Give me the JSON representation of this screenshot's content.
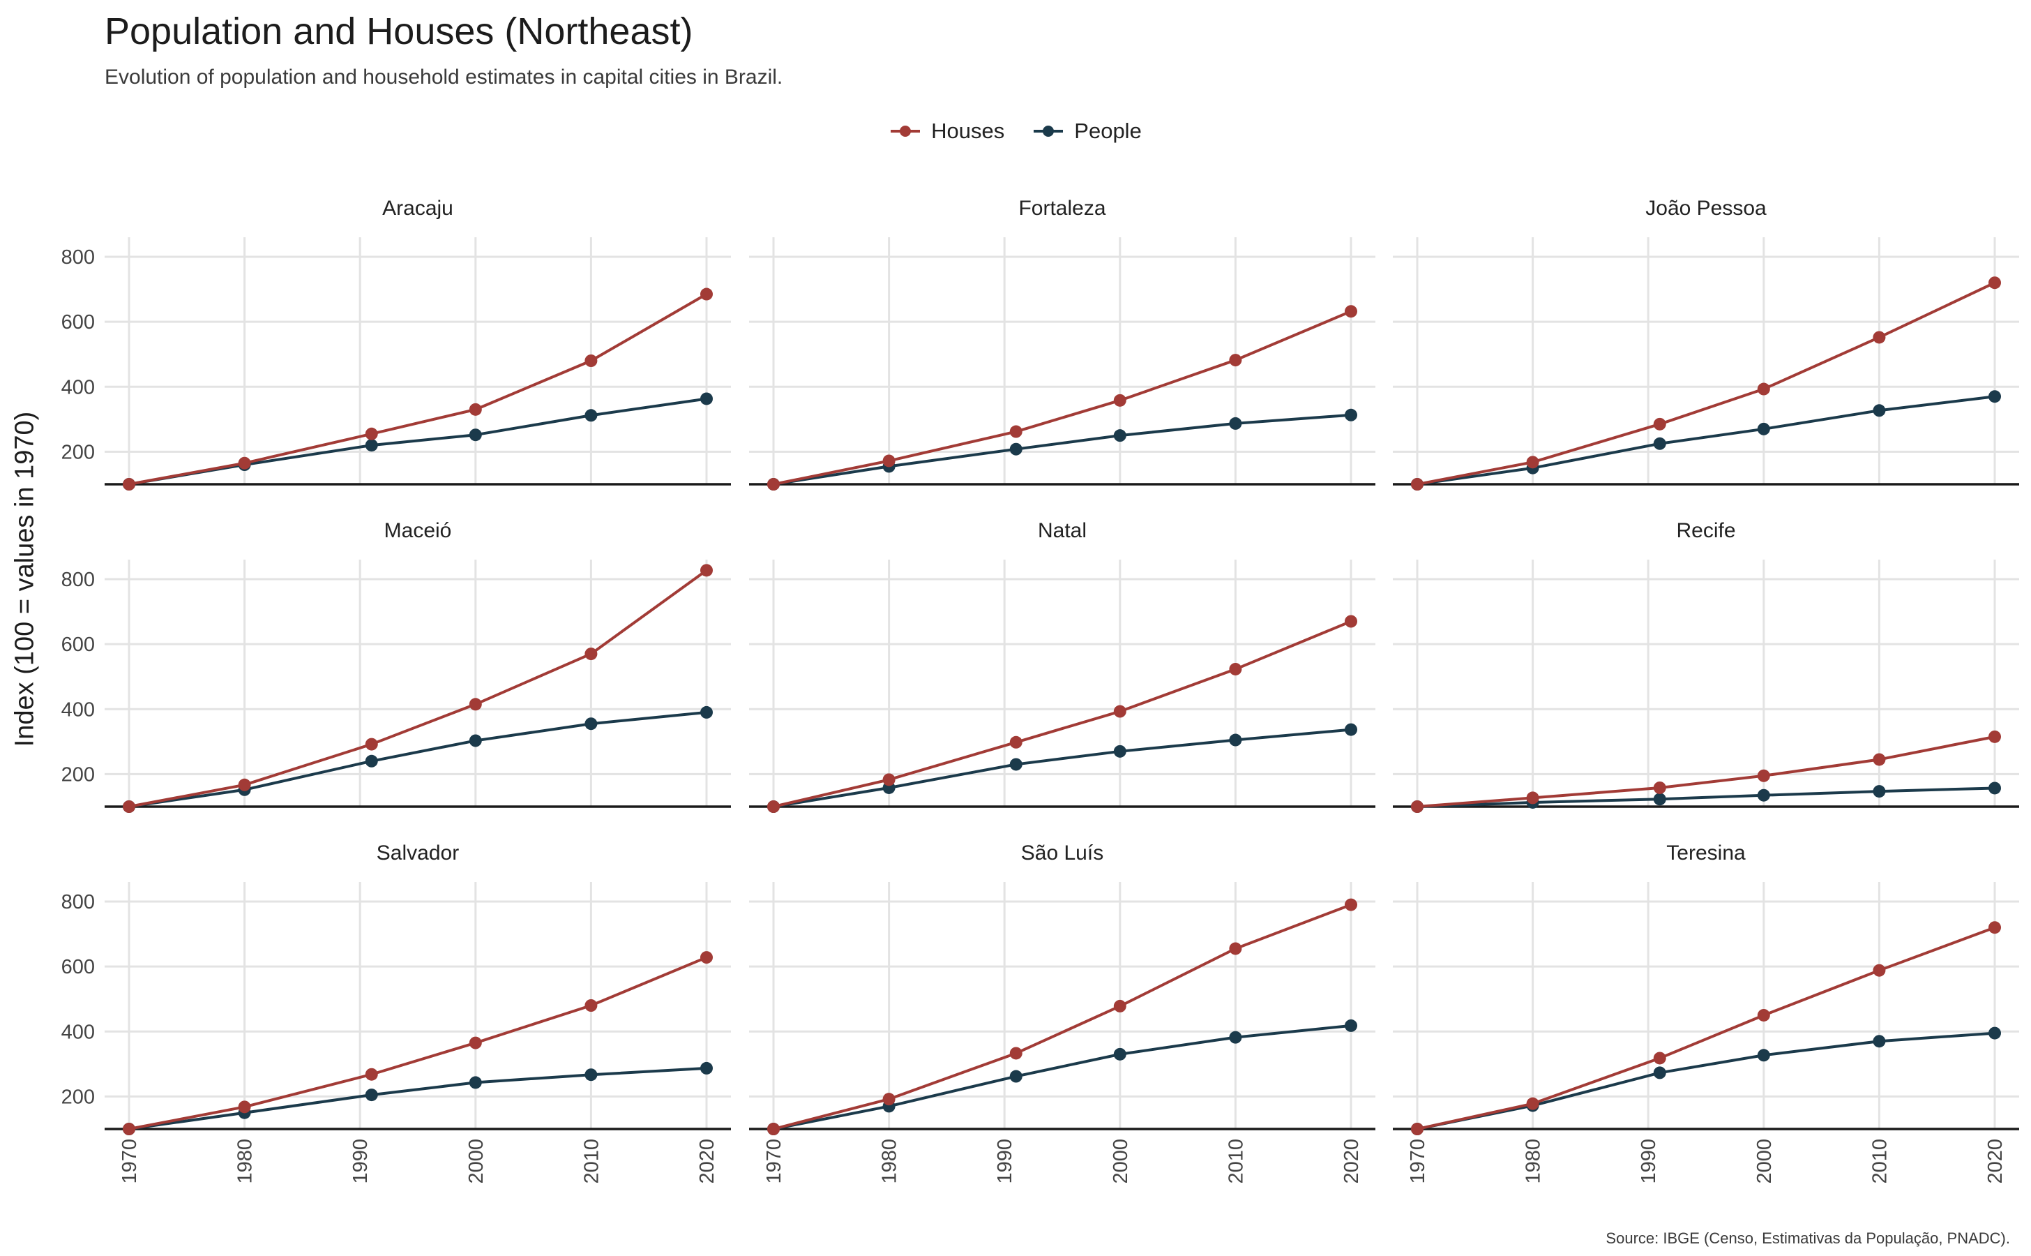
{
  "title": "Population and Houses (Northeast)",
  "subtitle": "Evolution of population and household estimates in capital cities in Brazil.",
  "caption": "Source: IBGE (Censo, Estimativas da População, PNADC).",
  "y_axis_label": "Index (100 = values in 1970)",
  "colors": {
    "houses": "#A23B36",
    "people": "#1B3A4B",
    "grid": "#E3E3E3",
    "baseline": "#1A1A1A"
  },
  "chart_data": {
    "type": "line",
    "facets": "3x3 grid",
    "x": [
      1970,
      1980,
      1991,
      2000,
      2010,
      2020
    ],
    "x_ticks": [
      "1970",
      "1980",
      "1990",
      "2000",
      "2010",
      "2020"
    ],
    "y_ticks": [
      "200",
      "400",
      "600",
      "800"
    ],
    "ylim": [
      100,
      860
    ],
    "baseline": 100,
    "legend": {
      "position": "top",
      "entries": [
        "Houses",
        "People"
      ]
    },
    "panels": [
      {
        "city": "Aracaju",
        "houses": [
          100,
          165,
          255,
          330,
          480,
          685
        ],
        "people": [
          100,
          160,
          220,
          252,
          312,
          363
        ]
      },
      {
        "city": "Fortaleza",
        "houses": [
          100,
          172,
          262,
          358,
          482,
          632
        ],
        "people": [
          100,
          155,
          208,
          250,
          287,
          313
        ]
      },
      {
        "city": "João Pessoa",
        "houses": [
          100,
          168,
          285,
          393,
          552,
          720
        ],
        "people": [
          100,
          150,
          225,
          270,
          327,
          370
        ]
      },
      {
        "city": "Maceió",
        "houses": [
          100,
          167,
          292,
          415,
          570,
          827
        ],
        "people": [
          100,
          152,
          240,
          303,
          355,
          390
        ]
      },
      {
        "city": "Natal",
        "houses": [
          100,
          183,
          298,
          393,
          523,
          670
        ],
        "people": [
          100,
          158,
          230,
          270,
          305,
          337
        ]
      },
      {
        "city": "Recife",
        "houses": [
          100,
          127,
          158,
          195,
          245,
          315
        ],
        "people": [
          100,
          113,
          123,
          135,
          147,
          157
        ]
      },
      {
        "city": "Salvador",
        "houses": [
          100,
          168,
          268,
          365,
          480,
          628
        ],
        "people": [
          100,
          150,
          205,
          243,
          267,
          287
        ]
      },
      {
        "city": "São Luís",
        "houses": [
          100,
          192,
          333,
          478,
          655,
          790
        ],
        "people": [
          100,
          170,
          262,
          330,
          382,
          418
        ]
      },
      {
        "city": "Teresina",
        "houses": [
          100,
          178,
          318,
          450,
          588,
          720
        ],
        "people": [
          100,
          172,
          273,
          327,
          370,
          395
        ]
      }
    ]
  }
}
